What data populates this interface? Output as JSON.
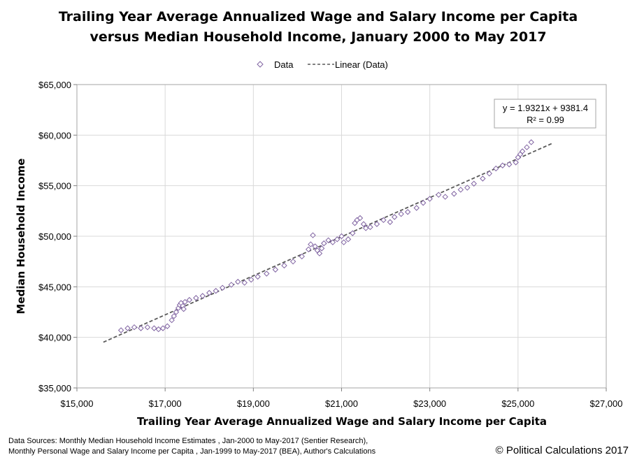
{
  "chart_data": {
    "type": "scatter",
    "title_lines": [
      "Trailing Year Average Annualized Wage and Salary Income per Capita",
      "versus Median Household Income, January 2000 to May 2017"
    ],
    "xlabel": "Trailing Year Average Annualized Wage and Salary Income per Capita",
    "ylabel": "Median Household Income",
    "xlim": [
      15000,
      27000
    ],
    "ylim": [
      35000,
      65000
    ],
    "x_ticks": [
      15000,
      17000,
      19000,
      21000,
      23000,
      25000,
      27000
    ],
    "x_tick_labels": [
      "$15,000",
      "$17,000",
      "$19,000",
      "$21,000",
      "$23,000",
      "$25,000",
      "$27,000"
    ],
    "y_ticks": [
      35000,
      40000,
      45000,
      50000,
      55000,
      60000,
      65000
    ],
    "y_tick_labels": [
      "$35,000",
      "$40,000",
      "$45,000",
      "$50,000",
      "$55,000",
      "$60,000",
      "$65,000"
    ],
    "grid": true,
    "legend_position": "top",
    "legend": {
      "data_label": "Data",
      "trend_label": "Linear (Data)"
    },
    "series": [
      {
        "name": "Data",
        "marker": "diamond",
        "color": "#8064a2",
        "points": [
          [
            16000,
            40700
          ],
          [
            16150,
            40900
          ],
          [
            16300,
            41000
          ],
          [
            16450,
            40900
          ],
          [
            16600,
            41000
          ],
          [
            16750,
            40900
          ],
          [
            16850,
            40800
          ],
          [
            16950,
            40900
          ],
          [
            17050,
            41100
          ],
          [
            17150,
            41700
          ],
          [
            17200,
            42100
          ],
          [
            17250,
            42500
          ],
          [
            17300,
            42900
          ],
          [
            17330,
            43200
          ],
          [
            17360,
            43400
          ],
          [
            17400,
            43100
          ],
          [
            17420,
            42800
          ],
          [
            17450,
            43500
          ],
          [
            17550,
            43700
          ],
          [
            17700,
            43900
          ],
          [
            17850,
            44100
          ],
          [
            18000,
            44400
          ],
          [
            18150,
            44600
          ],
          [
            18300,
            44900
          ],
          [
            18500,
            45200
          ],
          [
            18650,
            45500
          ],
          [
            18800,
            45400
          ],
          [
            18950,
            45700
          ],
          [
            19100,
            46000
          ],
          [
            19300,
            46300
          ],
          [
            19500,
            46700
          ],
          [
            19700,
            47100
          ],
          [
            19900,
            47500
          ],
          [
            20100,
            48000
          ],
          [
            20250,
            48700
          ],
          [
            20300,
            49200
          ],
          [
            20350,
            50100
          ],
          [
            20400,
            49000
          ],
          [
            20450,
            48600
          ],
          [
            20500,
            48300
          ],
          [
            20550,
            48800
          ],
          [
            20600,
            49300
          ],
          [
            20700,
            49600
          ],
          [
            20800,
            49400
          ],
          [
            20900,
            49700
          ],
          [
            21000,
            50000
          ],
          [
            21050,
            49400
          ],
          [
            21150,
            49700
          ],
          [
            21250,
            50300
          ],
          [
            21300,
            51300
          ],
          [
            21350,
            51600
          ],
          [
            21420,
            51800
          ],
          [
            21500,
            51200
          ],
          [
            21550,
            50800
          ],
          [
            21650,
            50900
          ],
          [
            21800,
            51200
          ],
          [
            21950,
            51600
          ],
          [
            22100,
            51400
          ],
          [
            22200,
            51900
          ],
          [
            22350,
            52200
          ],
          [
            22500,
            52400
          ],
          [
            22700,
            52800
          ],
          [
            22850,
            53300
          ],
          [
            23000,
            53700
          ],
          [
            23200,
            54100
          ],
          [
            23350,
            53900
          ],
          [
            23550,
            54200
          ],
          [
            23700,
            54600
          ],
          [
            23850,
            54800
          ],
          [
            24000,
            55200
          ],
          [
            24200,
            55700
          ],
          [
            24350,
            56200
          ],
          [
            24500,
            56700
          ],
          [
            24650,
            57000
          ],
          [
            24800,
            57100
          ],
          [
            24950,
            57300
          ],
          [
            25000,
            57800
          ],
          [
            25050,
            58100
          ],
          [
            25100,
            58400
          ],
          [
            25200,
            58800
          ],
          [
            25300,
            59300
          ]
        ]
      },
      {
        "name": "Linear (Data)",
        "type": "trendline",
        "style": "dashed",
        "color": "#595959",
        "slope": 1.9321,
        "intercept": 9381.4,
        "x_range": [
          15600,
          25800
        ]
      }
    ],
    "annotation": {
      "equation": "y = 1.9321x + 9381.4",
      "r2_text": "R² = 0.99"
    }
  },
  "footer": {
    "sources_line1": "Data Sources: Monthly Median Household Income Estimates , Jan-2000 to May-2017 (Sentier Research),",
    "sources_line2": "Monthly Personal Wage and Salary Income per Capita , Jan-1999 to May-2017 (BEA),  Author's Calculations",
    "copyright": "© Political Calculations 2017"
  }
}
